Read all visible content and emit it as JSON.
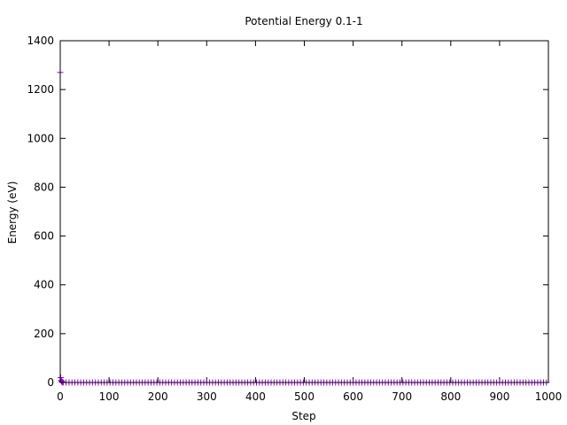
{
  "chart_data": {
    "type": "scatter",
    "title": "Potential Energy 0.1-1",
    "xlabel": "Step",
    "ylabel": "Energy (eV)",
    "xlim": [
      0,
      1000
    ],
    "ylim": [
      0,
      1400
    ],
    "x_ticks": [
      0,
      100,
      200,
      300,
      400,
      500,
      600,
      700,
      800,
      900,
      1000
    ],
    "y_ticks": [
      0,
      200,
      400,
      600,
      800,
      1000,
      1200,
      1400
    ],
    "grid": false,
    "legend": "none",
    "point_symbol": "plus",
    "series": [
      {
        "color": "#9400d3",
        "points": [
          [
            0,
            1270
          ],
          [
            1,
            20
          ],
          [
            2,
            8
          ],
          [
            3,
            4
          ],
          [
            4,
            2
          ],
          [
            5,
            1
          ]
        ],
        "steady_state": {
          "x_start": 6,
          "x_end": 1000,
          "x_step": 6,
          "y": 0
        }
      }
    ]
  }
}
